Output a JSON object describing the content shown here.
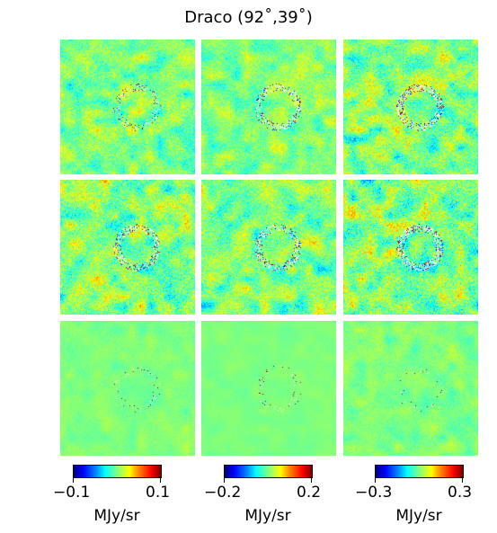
{
  "figure": {
    "title": "Draco (92˚,39˚)"
  },
  "panels": [
    {
      "row": 0,
      "col": 0,
      "amplitude": 0.45,
      "structure": "ring-faint"
    },
    {
      "row": 0,
      "col": 1,
      "amplitude": 0.4,
      "structure": "ring"
    },
    {
      "row": 0,
      "col": 2,
      "amplitude": 0.55,
      "structure": "ring-strong"
    },
    {
      "row": 1,
      "col": 0,
      "amplitude": 0.55,
      "structure": "ring"
    },
    {
      "row": 1,
      "col": 1,
      "amplitude": 0.5,
      "structure": "ring"
    },
    {
      "row": 1,
      "col": 2,
      "amplitude": 0.6,
      "structure": "ring-strong"
    },
    {
      "row": 2,
      "col": 0,
      "amplitude": 0.15,
      "structure": "flat"
    },
    {
      "row": 2,
      "col": 1,
      "amplitude": 0.08,
      "structure": "flat"
    },
    {
      "row": 2,
      "col": 2,
      "amplitude": 0.22,
      "structure": "flat"
    }
  ],
  "colorbars": [
    {
      "min_label": "−0.1",
      "max_label": "0.1",
      "unit": "MJy/sr",
      "colormap": "jet"
    },
    {
      "min_label": "−0.2",
      "max_label": "0.2",
      "unit": "MJy/sr",
      "colormap": "jet"
    },
    {
      "min_label": "−0.3",
      "max_label": "0.3",
      "unit": "MJy/sr",
      "colormap": "jet"
    }
  ]
}
